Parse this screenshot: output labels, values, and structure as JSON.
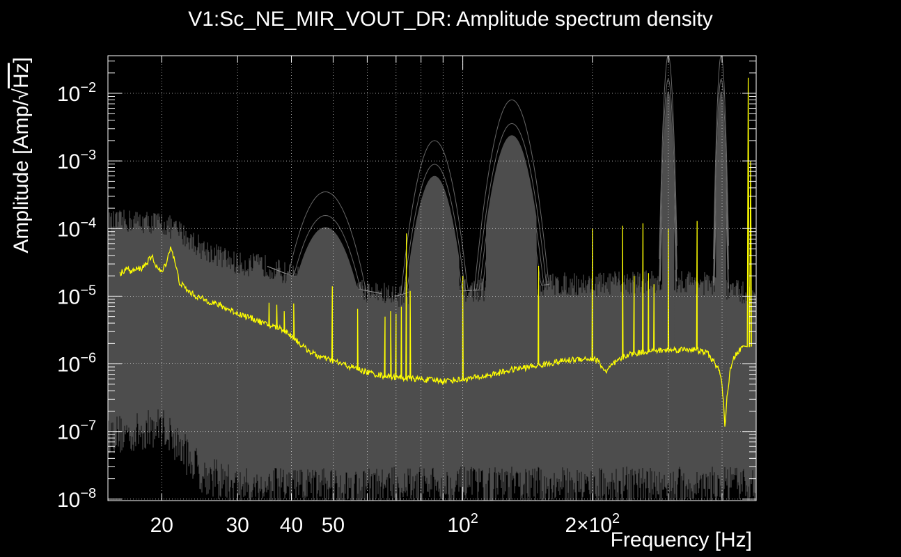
{
  "chart_data": {
    "type": "line",
    "title": "V1:Sc_NE_MIR_VOUT_DR: Amplitude spectrum density",
    "xlabel": "Frequency [Hz]",
    "ylabel_prefix": "Amplitude [Amp/",
    "ylabel_radical": "√",
    "ylabel_unit": "Hz",
    "ylabel_suffix": "]",
    "x_scale": "log",
    "y_scale": "log",
    "xlim": [
      15,
      480
    ],
    "ylim": [
      9.5e-09,
      0.036
    ],
    "grid": true,
    "x_tick_labels": [
      {
        "value": 20,
        "label": "20"
      },
      {
        "value": 30,
        "label": "30"
      },
      {
        "value": 40,
        "label": "40"
      },
      {
        "value": 50,
        "label": "50"
      },
      {
        "value": 100,
        "label": "10",
        "exp": "2"
      },
      {
        "value": 200,
        "label": "2×10",
        "exp": "2"
      }
    ],
    "y_tick_labels": [
      {
        "value": 1e-08,
        "label": "10",
        "exp": "−8"
      },
      {
        "value": 1e-07,
        "label": "10",
        "exp": "−7"
      },
      {
        "value": 1e-06,
        "label": "10",
        "exp": "−6"
      },
      {
        "value": 1e-05,
        "label": "10",
        "exp": "−5"
      },
      {
        "value": 0.0001,
        "label": "10",
        "exp": "−4"
      },
      {
        "value": 0.001,
        "label": "10",
        "exp": "−3"
      },
      {
        "value": 0.01,
        "label": "10",
        "exp": "−2"
      }
    ],
    "colors": {
      "background": "#000000",
      "reference_band": "#4d4d4d",
      "reference_traces": "#8a8a8a",
      "current_trace": "#ffff00",
      "frame": "#ffffff"
    },
    "reference_envelope": {
      "upper": [
        [
          15,
          0.00012
        ],
        [
          17,
          0.00013
        ],
        [
          20,
          0.00012
        ],
        [
          22,
          9e-05
        ],
        [
          25,
          5e-05
        ],
        [
          30,
          3e-05
        ],
        [
          35,
          2.8e-05
        ],
        [
          40,
          2e-05
        ],
        [
          45,
          1.8e-05
        ],
        [
          50,
          1.5e-05
        ],
        [
          60,
          1.2e-05
        ],
        [
          70,
          1e-05
        ],
        [
          80,
          1.3e-05
        ],
        [
          100,
          1.2e-05
        ],
        [
          130,
          1.3e-05
        ],
        [
          160,
          1.5e-05
        ],
        [
          200,
          1.5e-05
        ],
        [
          250,
          1.6e-05
        ],
        [
          300,
          1.7e-05
        ],
        [
          350,
          1.6e-05
        ],
        [
          400,
          1.4e-05
        ],
        [
          450,
          1.1e-05
        ],
        [
          480,
          1e-05
        ]
      ],
      "lower": [
        [
          15,
          6e-08
        ],
        [
          17,
          6e-08
        ],
        [
          20,
          8e-08
        ],
        [
          22,
          4e-08
        ],
        [
          25,
          1.5e-08
        ],
        [
          30,
          1e-08
        ],
        [
          40,
          1e-08
        ],
        [
          50,
          1e-08
        ],
        [
          100,
          1e-08
        ],
        [
          200,
          1e-08
        ],
        [
          300,
          1e-08
        ],
        [
          400,
          1e-08
        ],
        [
          480,
          1e-08
        ]
      ]
    },
    "reference_peaks": [
      {
        "f": 48,
        "width": 0.045,
        "amp": 0.00035
      },
      {
        "f": 86,
        "width": 0.03,
        "amp": 0.002
      },
      {
        "f": 130,
        "width": 0.03,
        "amp": 0.008
      },
      {
        "f": 300,
        "width": 0.007,
        "amp": 0.036
      },
      {
        "f": 398,
        "width": 0.006,
        "amp": 0.036
      }
    ],
    "series": [
      {
        "points": [
          [
            16,
            2.1e-05
          ],
          [
            16.5,
            2.6e-05
          ],
          [
            17,
            2.3e-05
          ],
          [
            17.5,
            2.5e-05
          ],
          [
            18,
            2.6e-05
          ],
          [
            18.5,
            3.2e-05
          ],
          [
            19,
            3.8e-05
          ],
          [
            19.5,
            2.7e-05
          ],
          [
            20,
            2.2e-05
          ],
          [
            20.5,
            3.2e-05
          ],
          [
            21,
            5.5e-05
          ],
          [
            21.5,
            3e-05
          ],
          [
            22,
            1.6e-05
          ],
          [
            23,
            1.2e-05
          ],
          [
            24,
            1e-05
          ],
          [
            25,
            9e-06
          ],
          [
            27,
            7.5e-06
          ],
          [
            30,
            5.6e-06
          ],
          [
            33,
            4.5e-06
          ],
          [
            35,
            3.8e-06
          ],
          [
            38,
            3.3e-06
          ],
          [
            40,
            2.6e-06
          ],
          [
            43,
            1.7e-06
          ],
          [
            46,
            1.3e-06
          ],
          [
            50,
            1.1e-06
          ],
          [
            55,
            9e-07
          ],
          [
            60,
            7.5e-07
          ],
          [
            65,
            6.7e-07
          ],
          [
            70,
            6.3e-07
          ],
          [
            80,
            5.9e-07
          ],
          [
            90,
            5.6e-07
          ],
          [
            100,
            5.9e-07
          ],
          [
            110,
            6.4e-07
          ],
          [
            120,
            7.2e-07
          ],
          [
            130,
            8.2e-07
          ],
          [
            150,
            9.5e-07
          ],
          [
            170,
            1.1e-06
          ],
          [
            190,
            1.2e-06
          ],
          [
            205,
            1.15e-06
          ],
          [
            215,
            7.5e-07
          ],
          [
            222,
            9.5e-07
          ],
          [
            240,
            1.35e-06
          ],
          [
            270,
            1.55e-06
          ],
          [
            300,
            1.6e-06
          ],
          [
            340,
            1.65e-06
          ],
          [
            370,
            1.45e-06
          ],
          [
            385,
            1e-06
          ],
          [
            395,
            8e-07
          ],
          [
            402,
            3.5e-07
          ],
          [
            406,
            1.1e-07
          ],
          [
            410,
            3e-07
          ],
          [
            418,
            8e-07
          ],
          [
            428,
            1.3e-06
          ],
          [
            440,
            1.6e-06
          ],
          [
            447,
            1.8e-06
          ]
        ],
        "peaks": [
          {
            "f": 35.5,
            "amp": 8e-06
          },
          {
            "f": 37,
            "amp": 7.5e-06
          },
          {
            "f": 38.5,
            "amp": 6e-06
          },
          {
            "f": 40.5,
            "amp": 7.8e-06
          },
          {
            "f": 49.8,
            "amp": 1.4e-05
          },
          {
            "f": 57,
            "amp": 6.5e-06
          },
          {
            "f": 66,
            "amp": 5e-06
          },
          {
            "f": 68,
            "amp": 6e-06
          },
          {
            "f": 70,
            "amp": 5.5e-06
          },
          {
            "f": 72,
            "amp": 7e-06
          },
          {
            "f": 74,
            "amp": 8.5e-05
          },
          {
            "f": 75.5,
            "amp": 1.2e-05
          },
          {
            "f": 100,
            "amp": 2e-05
          },
          {
            "f": 150,
            "amp": 2.8e-05
          },
          {
            "f": 200,
            "amp": 0.0001
          },
          {
            "f": 235,
            "amp": 0.00011
          },
          {
            "f": 250,
            "amp": 2e-05
          },
          {
            "f": 262,
            "amp": 0.00012
          },
          {
            "f": 270,
            "amp": 2.2e-05
          },
          {
            "f": 278,
            "amp": 1.5e-05
          },
          {
            "f": 300,
            "amp": 0.0001
          },
          {
            "f": 350,
            "amp": 0.00013
          },
          {
            "f": 460,
            "amp": 0.017
          },
          {
            "f": 466,
            "amp": 0.001
          }
        ]
      }
    ]
  }
}
